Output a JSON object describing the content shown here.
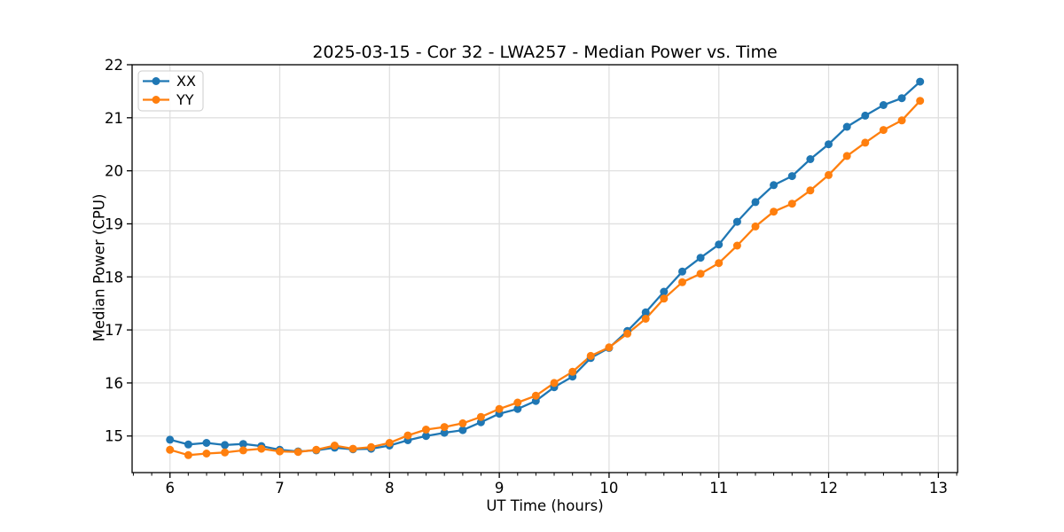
{
  "figure": {
    "title": "2025-03-15 - Cor 32 - LWA257 - Median Power vs. Time",
    "xlabel": "UT Time (hours)",
    "ylabel": "Median Power (CPU)"
  },
  "chart_data": {
    "type": "line",
    "title": "2025-03-15 - Cor 32 - LWA257 - Median Power vs. Time",
    "xlabel": "UT Time (hours)",
    "ylabel": "Median Power (CPU)",
    "xlim": [
      5.655,
      13.175
    ],
    "ylim": [
      14.31,
      22.0
    ],
    "xticks": [
      6,
      7,
      8,
      9,
      10,
      11,
      12,
      13
    ],
    "xticklabels": [
      "6",
      "7",
      "8",
      "9",
      "10",
      "11",
      "12",
      "13"
    ],
    "yticks": [
      15,
      16,
      17,
      18,
      19,
      20,
      21,
      22
    ],
    "yticklabels": [
      "15",
      "16",
      "17",
      "18",
      "19",
      "20",
      "21",
      "22"
    ],
    "x_minor_step": 0.166667,
    "grid": true,
    "legend_position": "upper-left",
    "style": {
      "grid_color": "#e0e0e0",
      "frame_color": "#000000",
      "legend_border_color": "#cccccc",
      "background_color": "#ffffff"
    },
    "x": [
      6.0,
      6.167,
      6.333,
      6.5,
      6.667,
      6.833,
      7.0,
      7.167,
      7.333,
      7.5,
      7.667,
      7.833,
      8.0,
      8.167,
      8.333,
      8.5,
      8.667,
      8.833,
      9.0,
      9.167,
      9.333,
      9.5,
      9.667,
      9.833,
      10.0,
      10.167,
      10.333,
      10.5,
      10.667,
      10.833,
      11.0,
      11.167,
      11.333,
      11.5,
      11.667,
      11.833,
      12.0,
      12.167,
      12.333,
      12.5,
      12.667,
      12.833
    ],
    "series": [
      {
        "name": "XX",
        "color": "#1f77b4",
        "values": [
          14.93,
          14.84,
          14.87,
          14.83,
          14.85,
          14.81,
          14.74,
          14.71,
          14.73,
          14.78,
          14.75,
          14.76,
          14.82,
          14.92,
          15.0,
          15.06,
          15.11,
          15.26,
          15.42,
          15.51,
          15.66,
          15.92,
          16.12,
          16.47,
          16.66,
          16.98,
          17.33,
          17.72,
          18.1,
          18.36,
          18.61,
          19.04,
          19.41,
          19.73,
          19.9,
          20.22,
          20.5,
          20.83,
          21.04,
          21.24,
          21.37,
          21.68
        ]
      },
      {
        "name": "YY",
        "color": "#ff7f0e",
        "values": [
          14.74,
          14.64,
          14.67,
          14.69,
          14.73,
          14.76,
          14.71,
          14.7,
          14.74,
          14.82,
          14.76,
          14.79,
          14.87,
          15.01,
          15.12,
          15.17,
          15.24,
          15.36,
          15.51,
          15.63,
          15.76,
          16.0,
          16.21,
          16.51,
          16.67,
          16.93,
          17.21,
          17.59,
          17.9,
          18.06,
          18.26,
          18.59,
          18.95,
          19.23,
          19.38,
          19.63,
          19.92,
          20.28,
          20.53,
          20.77,
          20.95,
          21.32
        ]
      }
    ]
  }
}
